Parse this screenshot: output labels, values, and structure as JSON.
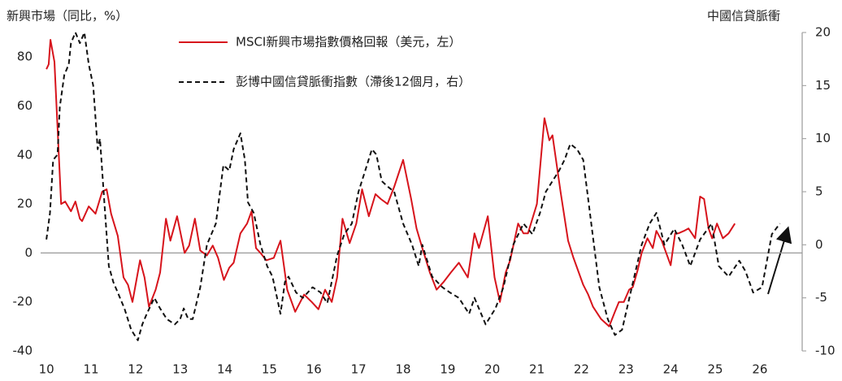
{
  "chart_data": {
    "type": "line",
    "y_label": "新興市場（同比，%）",
    "y2_label": "中國信貸脈衝",
    "xlim": [
      9.87,
      26.95
    ],
    "xticks": [
      10,
      11,
      12,
      13,
      14,
      15,
      16,
      17,
      18,
      19,
      20,
      21,
      22,
      23,
      24,
      25,
      26
    ],
    "ylim": [
      -40,
      90
    ],
    "yticks": [
      -40,
      -20,
      0,
      20,
      40,
      60,
      80
    ],
    "y2lim": [
      -10,
      20
    ],
    "y2ticks": [
      -10,
      -5,
      0,
      5,
      10,
      15,
      20
    ],
    "series": [
      {
        "name": "MSCI新興市場指數價格回報（美元，左）",
        "color": "#d7141c",
        "dash": false,
        "x": [
          10.0,
          10.05,
          10.09,
          10.18,
          10.33,
          10.42,
          10.55,
          10.65,
          10.75,
          10.8,
          10.95,
          11.1,
          11.25,
          11.35,
          11.45,
          11.6,
          11.73,
          11.83,
          11.93,
          12.1,
          12.2,
          12.3,
          12.45,
          12.55,
          12.68,
          12.78,
          12.93,
          13.1,
          13.2,
          13.33,
          13.45,
          13.6,
          13.73,
          13.85,
          13.98,
          14.1,
          14.2,
          14.35,
          14.5,
          14.6,
          14.7,
          14.8,
          14.93,
          15.1,
          15.25,
          15.4,
          15.58,
          15.78,
          15.95,
          16.1,
          16.25,
          16.4,
          16.52,
          16.64,
          16.8,
          16.95,
          17.08,
          17.23,
          17.38,
          17.5,
          17.65,
          17.8,
          18.0,
          18.18,
          18.3,
          18.43,
          18.6,
          18.75,
          18.9,
          19.07,
          19.25,
          19.45,
          19.6,
          19.7,
          19.9,
          20.05,
          20.17,
          20.3,
          20.4,
          20.58,
          20.7,
          20.8,
          21.0,
          21.17,
          21.28,
          21.35,
          21.53,
          21.7,
          21.82,
          22.04,
          22.15,
          22.26,
          22.44,
          22.62,
          22.75,
          22.84,
          22.95,
          23.07,
          23.15,
          23.26,
          23.35,
          23.48,
          23.6,
          23.68,
          23.8,
          24.0,
          24.1,
          24.17,
          24.3,
          24.4,
          24.55,
          24.66,
          24.75,
          24.85,
          24.93,
          25.04,
          25.17,
          25.3,
          25.44
        ],
        "values": [
          75,
          77,
          87,
          78,
          20,
          21,
          17,
          21,
          14,
          13,
          19,
          16,
          25,
          26,
          16,
          7,
          -10,
          -13,
          -20,
          -3,
          -10,
          -22,
          -15,
          -8,
          14,
          5,
          15,
          0,
          3,
          14,
          1,
          -1,
          3,
          -2,
          -11,
          -6,
          -4,
          8,
          12,
          17,
          2,
          0,
          -3,
          -2,
          5,
          -15,
          -24,
          -17,
          -20,
          -23,
          -15,
          -20,
          -10,
          14,
          4,
          12,
          26,
          15,
          24,
          22,
          20,
          27,
          38,
          22,
          10,
          2,
          -8,
          -15,
          -12,
          -8,
          -4,
          -10,
          8,
          2,
          15,
          -10,
          -20,
          -8,
          -3,
          12,
          8,
          8,
          20,
          55,
          46,
          48,
          25,
          5,
          -2,
          -13,
          -17,
          -22,
          -27,
          -30,
          -24,
          -20,
          -20,
          -15,
          -14,
          -7,
          0,
          6,
          2,
          9,
          5,
          -5,
          8,
          8,
          9,
          10,
          6,
          23,
          22,
          10,
          6,
          12,
          6,
          8,
          12
        ]
      },
      {
        "name": "彭博中國信貸脈衝指數（滯後12個月，右）",
        "color": "#111111",
        "dash": true,
        "axis": "y2",
        "x": [
          10.0,
          10.08,
          10.15,
          10.25,
          10.3,
          10.4,
          10.5,
          10.55,
          10.65,
          10.75,
          10.85,
          10.95,
          11.05,
          11.15,
          11.2,
          11.3,
          11.4,
          11.5,
          11.6,
          11.75,
          11.9,
          12.05,
          12.15,
          12.25,
          12.42,
          12.55,
          12.7,
          12.88,
          13.0,
          13.08,
          13.18,
          13.28,
          13.45,
          13.6,
          13.8,
          13.97,
          14.1,
          14.2,
          14.35,
          14.45,
          14.52,
          14.65,
          14.8,
          14.95,
          15.07,
          15.25,
          15.35,
          15.43,
          15.6,
          15.75,
          15.97,
          16.15,
          16.3,
          16.52,
          16.68,
          16.85,
          17.0,
          17.15,
          17.3,
          17.4,
          17.52,
          17.65,
          17.8,
          18.0,
          18.2,
          18.35,
          18.43,
          18.65,
          18.88,
          19.05,
          19.25,
          19.48,
          19.6,
          19.85,
          20.07,
          20.25,
          20.47,
          20.7,
          20.9,
          21.07,
          21.2,
          21.35,
          21.5,
          21.62,
          21.75,
          21.9,
          22.04,
          22.22,
          22.4,
          22.59,
          22.75,
          22.91,
          23.13,
          23.35,
          23.53,
          23.68,
          23.86,
          24.08,
          24.26,
          24.44,
          24.66,
          24.92,
          25.08,
          25.3,
          25.54,
          25.68,
          25.85,
          26.05,
          26.27,
          26.45
        ],
        "values": [
          0.5,
          3,
          8,
          8.5,
          13,
          16,
          17,
          19,
          20,
          19,
          20,
          17,
          15,
          9,
          10,
          4,
          -2,
          -3.5,
          -4.5,
          -6,
          -8,
          -9,
          -7.5,
          -6.5,
          -5,
          -6,
          -7,
          -7.5,
          -7,
          -6,
          -7,
          -7,
          -4,
          0,
          2,
          7.5,
          7,
          9,
          10.5,
          8,
          4,
          3,
          0,
          -2,
          -3,
          -6.5,
          -3.5,
          -3,
          -4.5,
          -5,
          -4,
          -4.5,
          -5.5,
          -1,
          1,
          2,
          5,
          7,
          9,
          8.5,
          6,
          5.5,
          5,
          2,
          0,
          -2,
          0,
          -3,
          -4,
          -4.5,
          -5,
          -6.5,
          -5,
          -7.5,
          -6,
          -4,
          0,
          2,
          1,
          3,
          5,
          6,
          7,
          8,
          9.5,
          9,
          8,
          2,
          -4,
          -7,
          -8.5,
          -8,
          -4,
          0,
          2,
          3,
          0,
          1.5,
          0,
          -2,
          0.5,
          2,
          -2,
          -3,
          -1.5,
          -2.5,
          -4.5,
          -4,
          1,
          2
        ]
      }
    ]
  }
}
